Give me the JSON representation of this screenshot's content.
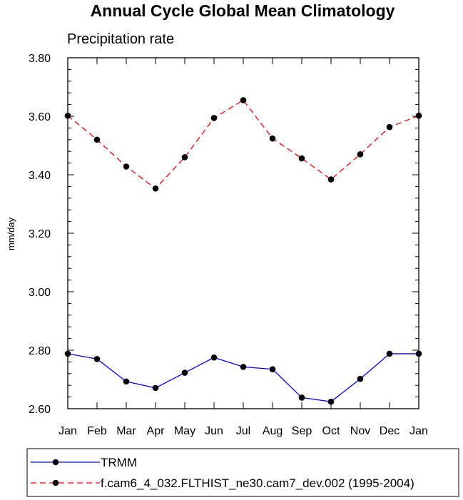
{
  "chart_data": {
    "type": "line",
    "title": "Annual Cycle Global Mean Climatology",
    "subtitle": "Precipitation rate",
    "ylabel": "mm/day",
    "xlabel": "",
    "categories": [
      "Jan",
      "Feb",
      "Mar",
      "Apr",
      "May",
      "Jun",
      "Jul",
      "Aug",
      "Sep",
      "Oct",
      "Nov",
      "Dec",
      "Jan"
    ],
    "ylim": [
      2.6,
      3.8
    ],
    "yticks": [
      "2.60",
      "2.80",
      "3.00",
      "3.20",
      "3.40",
      "3.60",
      "3.80"
    ],
    "grid": false,
    "legend_position": "bottom",
    "series": [
      {
        "name": "TRMM",
        "color": "#0000ff",
        "dash": "solid",
        "marker": "circle",
        "values": [
          2.788,
          2.77,
          2.693,
          2.671,
          2.723,
          2.775,
          2.743,
          2.735,
          2.638,
          2.624,
          2.702,
          2.788,
          2.788
        ]
      },
      {
        "name": "f.cam6_4_032.FLTHIST_ne30.cam7_dev.002 (1995-2004)",
        "color": "#ff0000",
        "dash": "dashed",
        "marker": "circle",
        "values": [
          3.602,
          3.52,
          3.428,
          3.353,
          3.46,
          3.594,
          3.655,
          3.524,
          3.456,
          3.384,
          3.47,
          3.563,
          3.602
        ]
      }
    ]
  }
}
